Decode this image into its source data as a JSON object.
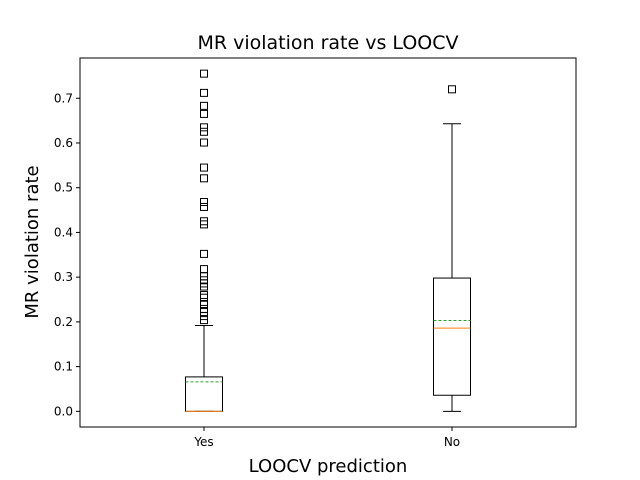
{
  "chart_data": {
    "type": "box",
    "title": "MR violation rate vs LOOCV",
    "xlabel": "LOOCV prediction",
    "ylabel": "MR violation rate",
    "categories": [
      "Yes",
      "No"
    ],
    "ylim": [
      -0.035,
      0.79
    ],
    "yticks": [
      0.0,
      0.1,
      0.2,
      0.3,
      0.4,
      0.5,
      0.6,
      0.7
    ],
    "ytick_labels": [
      "0.0",
      "0.1",
      "0.2",
      "0.3",
      "0.4",
      "0.5",
      "0.6",
      "0.7"
    ],
    "grid": false,
    "boxes": [
      {
        "category": "Yes",
        "q1": 0.0,
        "median": 0.0,
        "q3": 0.077,
        "whisker_low": 0.0,
        "whisker_high": 0.192,
        "mean": 0.066,
        "outliers": [
          0.755,
          0.712,
          0.683,
          0.665,
          0.635,
          0.625,
          0.601,
          0.545,
          0.521,
          0.468,
          0.457,
          0.425,
          0.418,
          0.352,
          0.318,
          0.302,
          0.293,
          0.286,
          0.279,
          0.26,
          0.254,
          0.24,
          0.229,
          0.222,
          0.213,
          0.204
        ]
      },
      {
        "category": "No",
        "q1": 0.036,
        "median": 0.186,
        "q3": 0.298,
        "whisker_low": 0.0,
        "whisker_high": 0.643,
        "mean": 0.203,
        "outliers": [
          0.72
        ]
      }
    ],
    "colors": {
      "median": "#ff7f0e",
      "mean": "#2ca02c",
      "box": "#000000"
    }
  }
}
